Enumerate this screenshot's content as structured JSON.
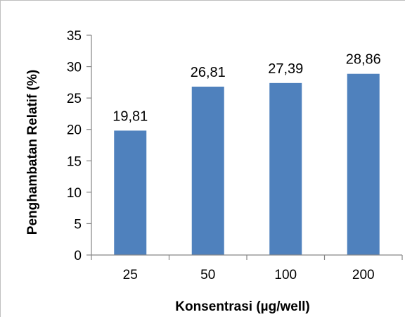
{
  "chart_data": {
    "type": "bar",
    "categories": [
      "25",
      "50",
      "100",
      "200"
    ],
    "values": [
      19.81,
      26.81,
      27.39,
      28.86
    ],
    "data_labels": [
      "19,81",
      "26,81",
      "27,39",
      "28,86"
    ],
    "title": "",
    "xlabel": "Konsentrasi (µg/well)",
    "ylabel": "Penghambatan Relatif (%)",
    "ylim": [
      0,
      35
    ],
    "yticks": [
      0,
      5,
      10,
      15,
      20,
      25,
      30,
      35
    ],
    "ytick_labels": [
      "0",
      "5",
      "10",
      "15",
      "20",
      "25",
      "30",
      "35"
    ],
    "grid": false,
    "legend": "none",
    "bar_color": "#4f81bd",
    "axis_color": "#868686"
  }
}
